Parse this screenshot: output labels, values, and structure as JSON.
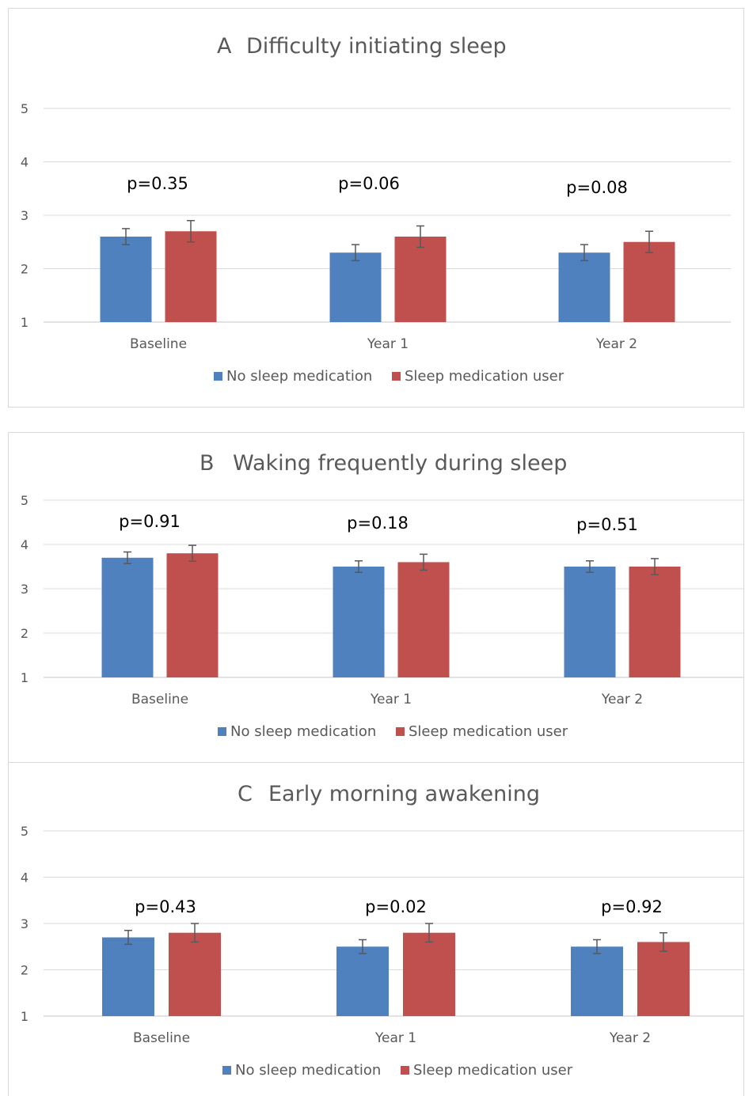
{
  "colors": {
    "no_med": "#4e81bd",
    "med_user": "#c0504d"
  },
  "chart_data": [
    {
      "type": "bar",
      "panel_letter": "A",
      "title": "Difficulty initiating sleep",
      "categories": [
        "Baseline",
        "Year 1",
        "Year 2"
      ],
      "series": [
        {
          "name": "No sleep medication",
          "values": [
            2.6,
            2.3,
            2.3
          ],
          "error": [
            0.15,
            0.15,
            0.15
          ]
        },
        {
          "name": "Sleep medication user",
          "values": [
            2.7,
            2.6,
            2.5
          ],
          "error": [
            0.2,
            0.2,
            0.2
          ]
        }
      ],
      "annotations": [
        "p=0.35",
        "p=0.06",
        "p=0.08"
      ],
      "yticks": [
        "1",
        "2",
        "3",
        "4",
        "5"
      ],
      "ylim": [
        1,
        5
      ],
      "grid": true,
      "legend": "bottom"
    },
    {
      "type": "bar",
      "panel_letter": "B",
      "title": "Waking frequently during sleep",
      "categories": [
        "Baseline",
        "Year 1",
        "Year 2"
      ],
      "series": [
        {
          "name": "No sleep medication",
          "values": [
            3.7,
            3.5,
            3.5
          ],
          "error": [
            0.13,
            0.13,
            0.13
          ]
        },
        {
          "name": "Sleep medication user",
          "values": [
            3.8,
            3.6,
            3.5
          ],
          "error": [
            0.18,
            0.18,
            0.18
          ]
        }
      ],
      "annotations": [
        "p=0.91",
        "p=0.18",
        "p=0.51"
      ],
      "yticks": [
        "1",
        "2",
        "3",
        "4",
        "5"
      ],
      "ylim": [
        1,
        5
      ],
      "grid": true,
      "legend": "bottom"
    },
    {
      "type": "bar",
      "panel_letter": "C",
      "title": "Early morning awakening",
      "categories": [
        "Baseline",
        "Year 1",
        "Year 2"
      ],
      "series": [
        {
          "name": "No sleep medication",
          "values": [
            2.7,
            2.5,
            2.5
          ],
          "error": [
            0.15,
            0.15,
            0.15
          ]
        },
        {
          "name": "Sleep medication user",
          "values": [
            2.8,
            2.8,
            2.6
          ],
          "error": [
            0.2,
            0.2,
            0.2
          ]
        }
      ],
      "annotations": [
        "p=0.43",
        "p=0.02",
        "p=0.92"
      ],
      "yticks": [
        "1",
        "2",
        "3",
        "4",
        "5"
      ],
      "ylim": [
        1,
        5
      ],
      "grid": true,
      "legend": "bottom"
    }
  ]
}
